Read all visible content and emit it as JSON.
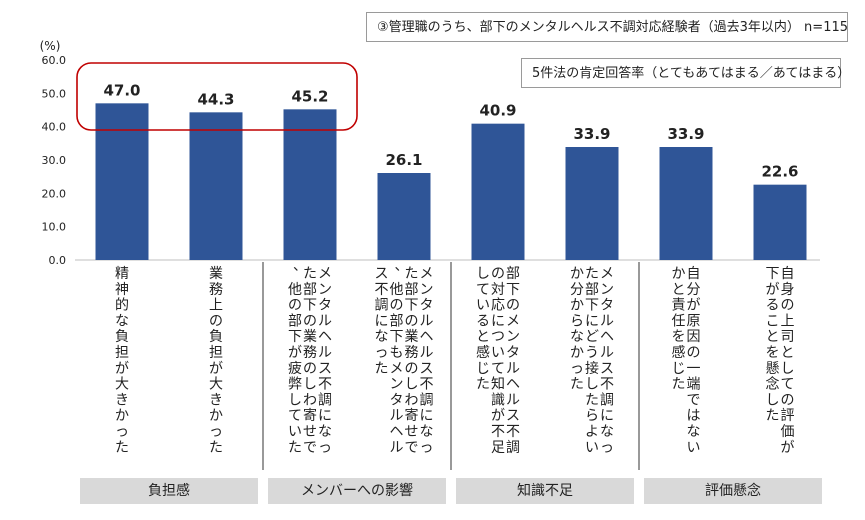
{
  "header": {
    "title": "③管理職のうち、部下のメンタルヘルス不調対応経験者（過去3年以内） n=115",
    "subtitle": "5件法の肯定回答率（とてもあてはまる／あてはまる）"
  },
  "chart_data": {
    "type": "bar",
    "ylabel": "(%)",
    "ylim": [
      0,
      60
    ],
    "yticks": [
      "0.0",
      "10.0",
      "20.0",
      "30.0",
      "40.0",
      "50.0",
      "60.0"
    ],
    "bar_color": "#2f5597",
    "highlight_color": "#c00000",
    "grid": false,
    "categories": [
      "精神的な負担が大きかった",
      "業務上の負担が大きかった",
      "メンタルヘルス不調になった部下の業務のしわ寄せで、他の部下が疲弊していた",
      "メンタルヘルス不調になった部下の業務のしわ寄せで、他の部下もメンタルヘルス不調になった",
      "部下のメンタルヘルス不調の対応について知識が不足していると感じた",
      "メンタルヘルス不調になった部下にどう接したらよいか分からなかった",
      "自分が原因の一端ではないかと責任を感じた",
      "自身の上司としての評価が下がることを懸念した"
    ],
    "values": [
      47.0,
      44.3,
      45.2,
      26.1,
      40.9,
      33.9,
      33.9,
      22.6
    ],
    "value_labels": [
      "47.0",
      "44.3",
      "45.2",
      "26.1",
      "40.9",
      "33.9",
      "33.9",
      "22.6"
    ],
    "groups": [
      {
        "label": "負担感",
        "indices": [
          0,
          1
        ]
      },
      {
        "label": "メンバーへの影響",
        "indices": [
          2,
          3
        ]
      },
      {
        "label": "知識不足",
        "indices": [
          4,
          5
        ]
      },
      {
        "label": "評価懸念",
        "indices": [
          6,
          7
        ]
      }
    ]
  }
}
